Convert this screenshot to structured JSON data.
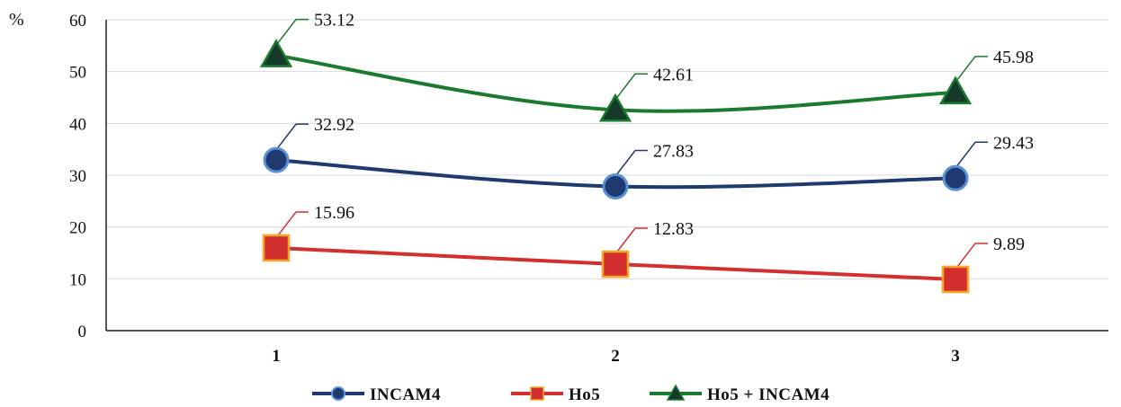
{
  "chart_data": {
    "type": "line",
    "categories": [
      "1",
      "2",
      "3"
    ],
    "y_unit": "%",
    "ylim": [
      0,
      60
    ],
    "y_ticks": [
      0,
      10,
      20,
      30,
      40,
      50,
      60
    ],
    "grid": true,
    "legend_position": "bottom",
    "series": [
      {
        "name": "INCAM4",
        "values": [
          32.92,
          27.83,
          29.43
        ],
        "color": "#1f3a6e",
        "marker": "circle",
        "labels": [
          "32.92",
          "27.83",
          "29.43"
        ]
      },
      {
        "name": "Ho5",
        "values": [
          15.96,
          12.83,
          9.89
        ],
        "color": "#d32f2f",
        "marker": "square",
        "labels": [
          "15.96",
          "12.83",
          "9.89"
        ]
      },
      {
        "name": "Ho5 + INCAM4",
        "values": [
          53.12,
          42.61,
          45.98
        ],
        "color": "#1a7a2e",
        "marker": "triangle",
        "labels": [
          "53.12",
          "42.61",
          "45.98"
        ]
      }
    ]
  }
}
